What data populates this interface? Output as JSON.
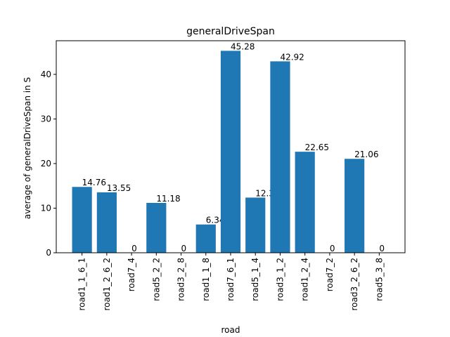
{
  "chart_data": {
    "type": "bar",
    "title": "generalDriveSpan",
    "xlabel": "road",
    "ylabel": "average of generalDriveSpan in S",
    "categories": [
      "road1_1_6_1",
      "road1_2_6_2",
      "road7_4",
      "road5_2_2",
      "road3_2_8",
      "road1_1_8",
      "road7_6_1",
      "road5_1_4",
      "road3_1_2",
      "road1_2_4",
      "road7_2",
      "road3_2_6_2",
      "road5_3_8"
    ],
    "values": [
      14.76,
      13.55,
      0,
      11.18,
      0,
      6.34,
      45.28,
      12.37,
      42.92,
      22.65,
      0,
      21.06,
      0
    ],
    "data_labels": [
      "14.76",
      "13.55",
      "0",
      "11.18",
      "0",
      "6.34",
      "45.28",
      "12.37",
      "42.92",
      "22.65",
      "0",
      "21.06",
      "0"
    ],
    "ylim": [
      0,
      47.544
    ],
    "yticks": [
      0,
      10,
      20,
      30,
      40
    ],
    "grid": false,
    "bar_color": "#1f77b4"
  }
}
